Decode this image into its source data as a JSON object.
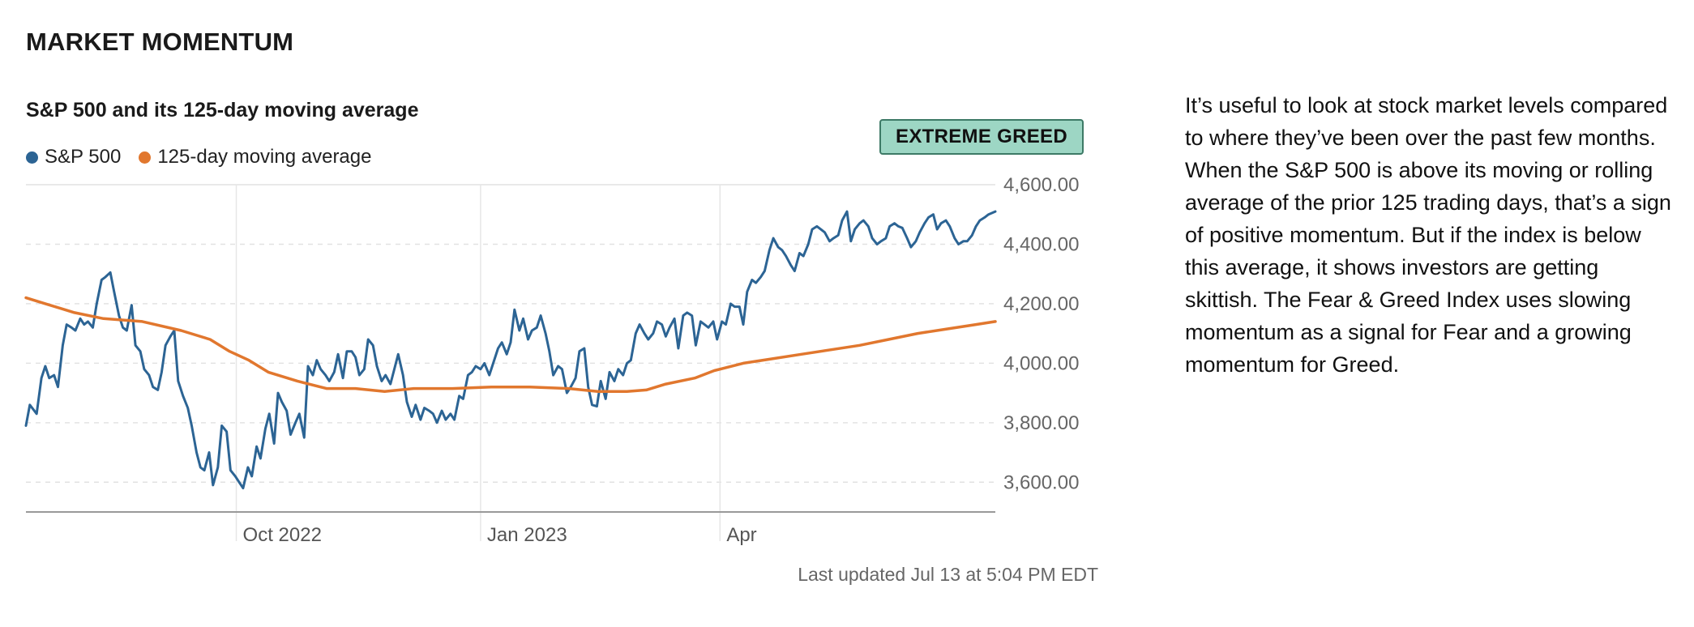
{
  "section_title": "MARKET MOMENTUM",
  "badge": {
    "label": "EXTREME GREED",
    "color": "#9dd6c4"
  },
  "last_updated": "Last updated Jul 13 at 5:04 PM EDT",
  "description": "It’s useful to look at stock market levels compared to where they’ve been over the past few months. When the S&P 500 is above its moving or rolling average of the prior 125 trading days, that’s a sign of positive momentum. But if the index is below this average, it shows investors are getting skittish. The Fear & Greed Index uses slowing momentum as a signal for Fear and a growing momentum for Greed.",
  "chart_data": {
    "type": "line",
    "title": "S&P 500 and its 125-day moving average",
    "xlabel": "",
    "ylabel": "",
    "x_range": [
      0,
      1
    ],
    "ylim": [
      3500,
      4600
    ],
    "yticks": [
      3600,
      3800,
      4000,
      4200,
      4400,
      4600
    ],
    "ytick_labels": [
      "3,600.00",
      "3,800.00",
      "4,000.00",
      "4,200.00",
      "4,400.00",
      "4,600.00"
    ],
    "xticks": [
      {
        "label": "Oct 2022",
        "x": 0.217
      },
      {
        "label": "Jan 2023",
        "x": 0.469
      },
      {
        "label": "Apr",
        "x": 0.716
      }
    ],
    "grid": true,
    "legend_position": "top-left",
    "series": [
      {
        "name": "S&P 500",
        "color": "#2c6494",
        "points": [
          [
            0.0,
            3790
          ],
          [
            0.004,
            3860
          ],
          [
            0.011,
            3830
          ],
          [
            0.016,
            3950
          ],
          [
            0.02,
            3990
          ],
          [
            0.024,
            3950
          ],
          [
            0.029,
            3960
          ],
          [
            0.033,
            3920
          ],
          [
            0.038,
            4060
          ],
          [
            0.042,
            4130
          ],
          [
            0.047,
            4120
          ],
          [
            0.051,
            4110
          ],
          [
            0.056,
            4150
          ],
          [
            0.06,
            4130
          ],
          [
            0.064,
            4140
          ],
          [
            0.069,
            4120
          ],
          [
            0.073,
            4200
          ],
          [
            0.078,
            4280
          ],
          [
            0.082,
            4290
          ],
          [
            0.087,
            4305
          ],
          [
            0.091,
            4240
          ],
          [
            0.096,
            4160
          ],
          [
            0.1,
            4120
          ],
          [
            0.104,
            4110
          ],
          [
            0.109,
            4195
          ],
          [
            0.113,
            4060
          ],
          [
            0.118,
            4040
          ],
          [
            0.122,
            3980
          ],
          [
            0.127,
            3960
          ],
          [
            0.131,
            3920
          ],
          [
            0.136,
            3910
          ],
          [
            0.14,
            3970
          ],
          [
            0.144,
            4060
          ],
          [
            0.149,
            4090
          ],
          [
            0.153,
            4110
          ],
          [
            0.157,
            3940
          ],
          [
            0.162,
            3890
          ],
          [
            0.167,
            3850
          ],
          [
            0.171,
            3790
          ],
          [
            0.176,
            3700
          ],
          [
            0.18,
            3650
          ],
          [
            0.184,
            3640
          ],
          [
            0.189,
            3700
          ],
          [
            0.193,
            3590
          ],
          [
            0.198,
            3650
          ],
          [
            0.202,
            3790
          ],
          [
            0.207,
            3770
          ],
          [
            0.211,
            3640
          ],
          [
            0.216,
            3620
          ],
          [
            0.22,
            3600
          ],
          [
            0.224,
            3580
          ],
          [
            0.229,
            3650
          ],
          [
            0.233,
            3620
          ],
          [
            0.238,
            3720
          ],
          [
            0.242,
            3680
          ],
          [
            0.247,
            3780
          ],
          [
            0.251,
            3830
          ],
          [
            0.256,
            3730
          ],
          [
            0.26,
            3900
          ],
          [
            0.264,
            3870
          ],
          [
            0.269,
            3840
          ],
          [
            0.273,
            3760
          ],
          [
            0.278,
            3800
          ],
          [
            0.282,
            3830
          ],
          [
            0.287,
            3750
          ],
          [
            0.291,
            3990
          ],
          [
            0.296,
            3960
          ],
          [
            0.3,
            4010
          ],
          [
            0.304,
            3980
          ],
          [
            0.309,
            3960
          ],
          [
            0.313,
            3940
          ],
          [
            0.318,
            3970
          ],
          [
            0.322,
            4030
          ],
          [
            0.327,
            3950
          ],
          [
            0.331,
            4040
          ],
          [
            0.336,
            4040
          ],
          [
            0.34,
            4020
          ],
          [
            0.344,
            3960
          ],
          [
            0.349,
            3980
          ],
          [
            0.353,
            4080
          ],
          [
            0.358,
            4060
          ],
          [
            0.362,
            3990
          ],
          [
            0.367,
            3940
          ],
          [
            0.371,
            3960
          ],
          [
            0.376,
            3930
          ],
          [
            0.38,
            3980
          ],
          [
            0.384,
            4030
          ],
          [
            0.389,
            3960
          ],
          [
            0.393,
            3870
          ],
          [
            0.398,
            3820
          ],
          [
            0.402,
            3860
          ],
          [
            0.407,
            3810
          ],
          [
            0.411,
            3850
          ],
          [
            0.416,
            3840
          ],
          [
            0.42,
            3830
          ],
          [
            0.424,
            3800
          ],
          [
            0.429,
            3840
          ],
          [
            0.433,
            3810
          ],
          [
            0.438,
            3830
          ],
          [
            0.442,
            3810
          ],
          [
            0.447,
            3890
          ],
          [
            0.451,
            3880
          ],
          [
            0.456,
            3960
          ],
          [
            0.46,
            3970
          ],
          [
            0.464,
            3990
          ],
          [
            0.469,
            3980
          ],
          [
            0.473,
            4000
          ],
          [
            0.478,
            3960
          ],
          [
            0.482,
            4000
          ],
          [
            0.487,
            4050
          ],
          [
            0.491,
            4070
          ],
          [
            0.496,
            4030
          ],
          [
            0.5,
            4070
          ],
          [
            0.504,
            4180
          ],
          [
            0.509,
            4110
          ],
          [
            0.513,
            4150
          ],
          [
            0.518,
            4080
          ],
          [
            0.522,
            4110
          ],
          [
            0.527,
            4120
          ],
          [
            0.531,
            4160
          ],
          [
            0.536,
            4100
          ],
          [
            0.54,
            4040
          ],
          [
            0.544,
            3960
          ],
          [
            0.549,
            3990
          ],
          [
            0.553,
            3980
          ],
          [
            0.558,
            3900
          ],
          [
            0.562,
            3920
          ],
          [
            0.567,
            3950
          ],
          [
            0.571,
            4040
          ],
          [
            0.576,
            4050
          ],
          [
            0.58,
            3920
          ],
          [
            0.584,
            3860
          ],
          [
            0.589,
            3855
          ],
          [
            0.593,
            3940
          ],
          [
            0.598,
            3880
          ],
          [
            0.602,
            3970
          ],
          [
            0.607,
            3940
          ],
          [
            0.611,
            3980
          ],
          [
            0.616,
            3960
          ],
          [
            0.62,
            4000
          ],
          [
            0.624,
            4010
          ],
          [
            0.629,
            4100
          ],
          [
            0.633,
            4130
          ],
          [
            0.638,
            4100
          ],
          [
            0.642,
            4080
          ],
          [
            0.647,
            4100
          ],
          [
            0.651,
            4140
          ],
          [
            0.656,
            4130
          ],
          [
            0.66,
            4090
          ],
          [
            0.664,
            4120
          ],
          [
            0.669,
            4150
          ],
          [
            0.673,
            4050
          ],
          [
            0.678,
            4160
          ],
          [
            0.682,
            4170
          ],
          [
            0.687,
            4160
          ],
          [
            0.691,
            4060
          ],
          [
            0.696,
            4140
          ],
          [
            0.7,
            4130
          ],
          [
            0.704,
            4120
          ],
          [
            0.709,
            4140
          ],
          [
            0.713,
            4080
          ],
          [
            0.718,
            4140
          ],
          [
            0.722,
            4130
          ],
          [
            0.727,
            4200
          ],
          [
            0.731,
            4190
          ],
          [
            0.736,
            4190
          ],
          [
            0.74,
            4130
          ],
          [
            0.744,
            4240
          ],
          [
            0.749,
            4280
          ],
          [
            0.753,
            4270
          ],
          [
            0.758,
            4290
          ],
          [
            0.762,
            4310
          ],
          [
            0.767,
            4380
          ],
          [
            0.771,
            4420
          ],
          [
            0.776,
            4390
          ],
          [
            0.78,
            4380
          ],
          [
            0.784,
            4360
          ],
          [
            0.789,
            4330
          ],
          [
            0.793,
            4310
          ],
          [
            0.798,
            4370
          ],
          [
            0.802,
            4360
          ],
          [
            0.807,
            4400
          ],
          [
            0.811,
            4450
          ],
          [
            0.816,
            4460
          ],
          [
            0.82,
            4450
          ],
          [
            0.824,
            4440
          ],
          [
            0.829,
            4410
          ],
          [
            0.833,
            4420
          ],
          [
            0.838,
            4430
          ],
          [
            0.842,
            4480
          ],
          [
            0.847,
            4510
          ],
          [
            0.851,
            4410
          ],
          [
            0.855,
            4450
          ],
          [
            0.86,
            4470
          ],
          [
            0.864,
            4480
          ],
          [
            0.869,
            4460
          ],
          [
            0.873,
            4420
          ],
          [
            0.878,
            4400
          ],
          [
            0.882,
            4410
          ],
          [
            0.887,
            4420
          ],
          [
            0.891,
            4460
          ],
          [
            0.896,
            4470
          ],
          [
            0.9,
            4460
          ],
          [
            0.904,
            4455
          ],
          [
            0.909,
            4420
          ],
          [
            0.913,
            4390
          ],
          [
            0.918,
            4410
          ],
          [
            0.922,
            4440
          ],
          [
            0.927,
            4470
          ],
          [
            0.931,
            4490
          ],
          [
            0.936,
            4500
          ],
          [
            0.94,
            4450
          ],
          [
            0.944,
            4470
          ],
          [
            0.949,
            4480
          ],
          [
            0.953,
            4460
          ],
          [
            0.958,
            4420
          ],
          [
            0.962,
            4400
          ],
          [
            0.967,
            4410
          ],
          [
            0.971,
            4410
          ],
          [
            0.976,
            4430
          ],
          [
            0.98,
            4460
          ],
          [
            0.984,
            4480
          ],
          [
            0.989,
            4490
          ],
          [
            0.993,
            4500
          ],
          [
            1.0,
            4510
          ]
        ]
      },
      {
        "name": "125-day moving average",
        "color": "#e1772e",
        "points": [
          [
            0.0,
            4220
          ],
          [
            0.02,
            4200
          ],
          [
            0.05,
            4170
          ],
          [
            0.08,
            4150
          ],
          [
            0.12,
            4140
          ],
          [
            0.16,
            4110
          ],
          [
            0.19,
            4080
          ],
          [
            0.21,
            4040
          ],
          [
            0.23,
            4010
          ],
          [
            0.25,
            3970
          ],
          [
            0.28,
            3940
          ],
          [
            0.31,
            3915
          ],
          [
            0.34,
            3915
          ],
          [
            0.37,
            3905
          ],
          [
            0.4,
            3915
          ],
          [
            0.44,
            3915
          ],
          [
            0.48,
            3920
          ],
          [
            0.52,
            3920
          ],
          [
            0.56,
            3915
          ],
          [
            0.59,
            3905
          ],
          [
            0.62,
            3905
          ],
          [
            0.64,
            3910
          ],
          [
            0.66,
            3930
          ],
          [
            0.69,
            3950
          ],
          [
            0.71,
            3975
          ],
          [
            0.74,
            4000
          ],
          [
            0.77,
            4015
          ],
          [
            0.8,
            4030
          ],
          [
            0.83,
            4045
          ],
          [
            0.86,
            4060
          ],
          [
            0.89,
            4080
          ],
          [
            0.92,
            4100
          ],
          [
            0.95,
            4115
          ],
          [
            0.98,
            4130
          ],
          [
            1.0,
            4140
          ]
        ]
      }
    ]
  }
}
